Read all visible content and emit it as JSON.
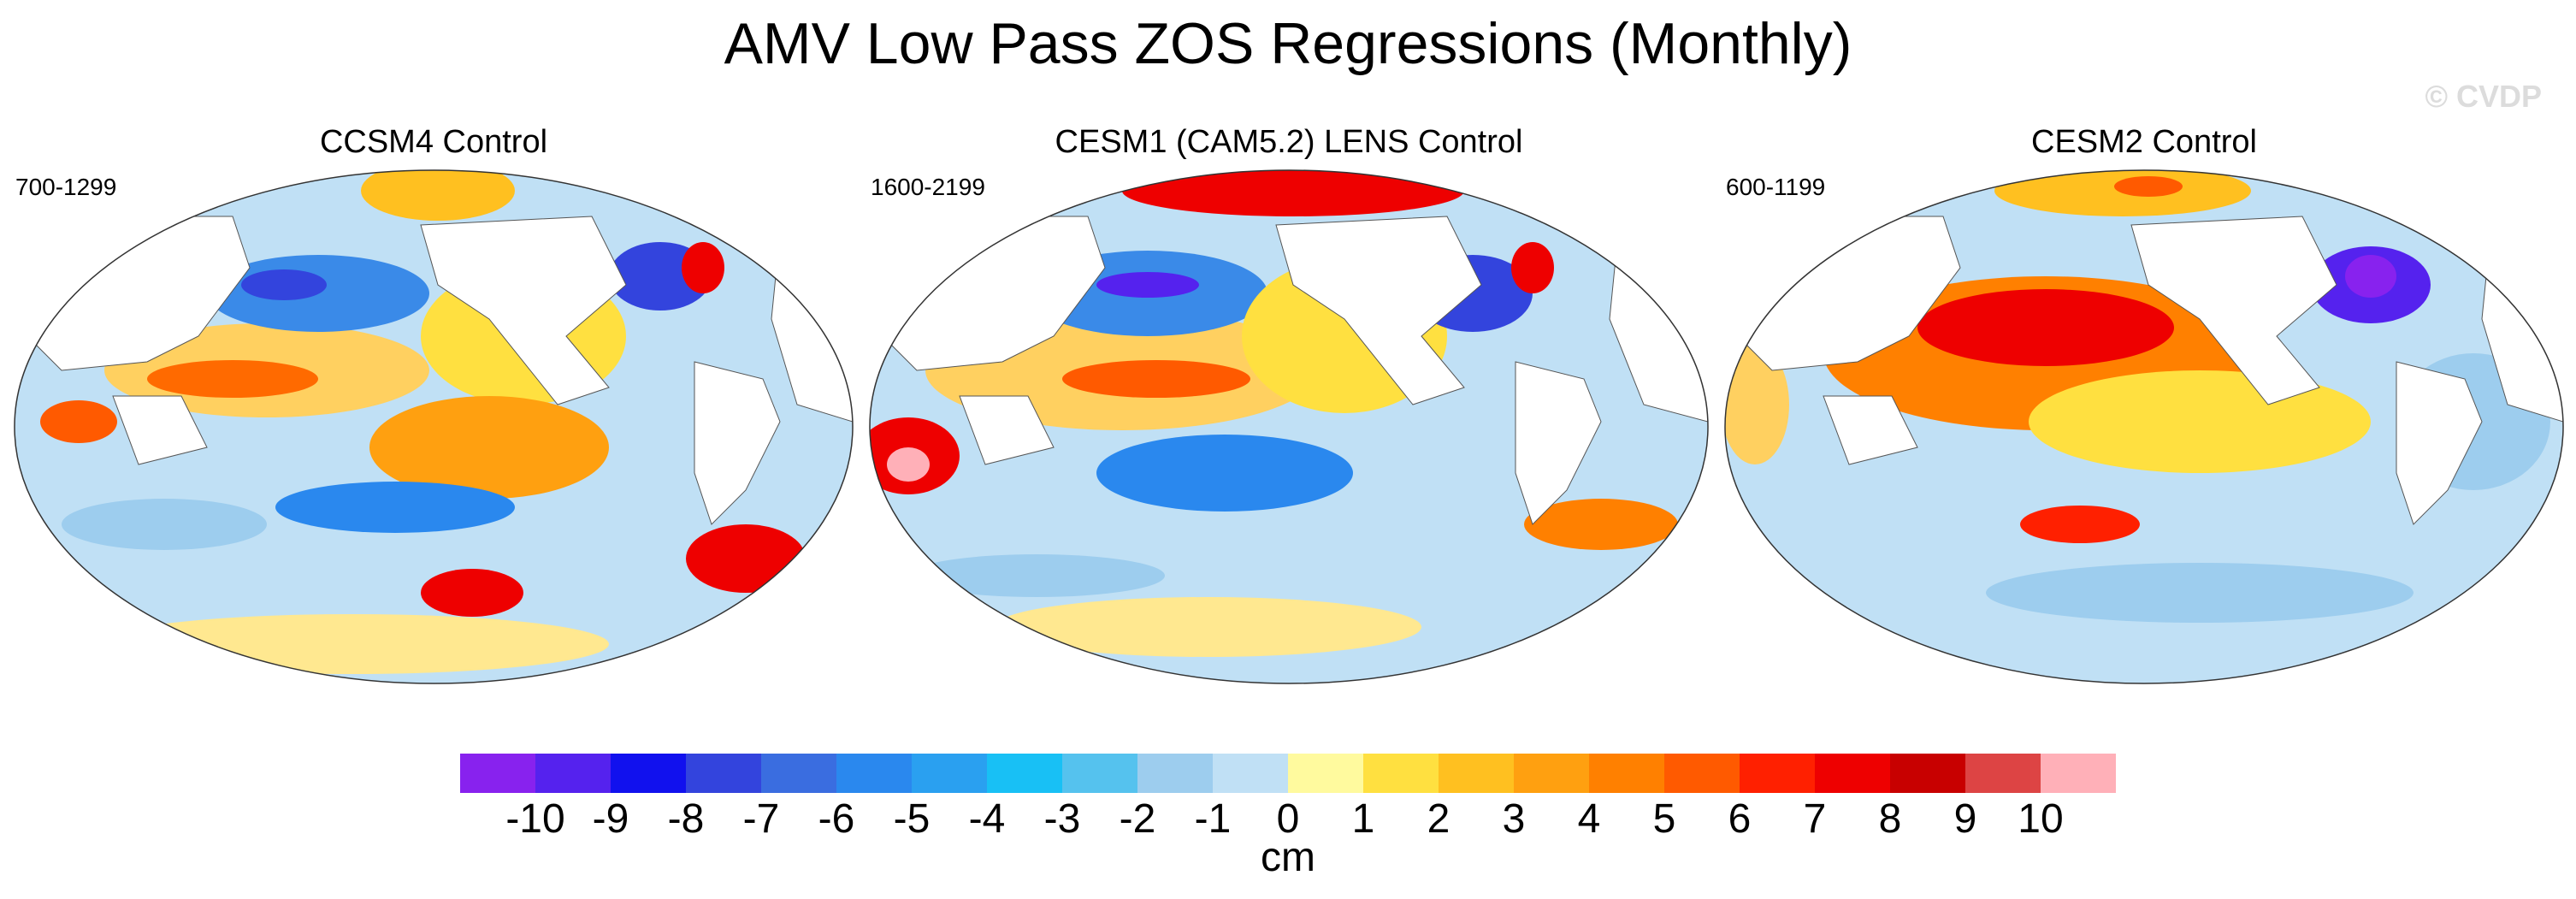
{
  "title": "AMV Low Pass ZOS Regressions (Monthly)",
  "credit": "© CVDP",
  "panels": [
    {
      "title": "CCSM4 Control",
      "years": "700-1299"
    },
    {
      "title": "CESM1 (CAM5.2) LENS Control",
      "years": "1600-2199"
    },
    {
      "title": "CESM2 Control",
      "years": "600-1199"
    }
  ],
  "colorbar": {
    "units": "cm",
    "colors": [
      "#8822ee",
      "#5522ee",
      "#1111ee",
      "#3344dd",
      "#3a6de0",
      "#2a88ee",
      "#2aa0f0",
      "#18c0f5",
      "#55c2ee",
      "#9dcdee",
      "#c0e0f5",
      "#fffa9e",
      "#ffe040",
      "#ffc020",
      "#ffa010",
      "#ff8000",
      "#ff5a00",
      "#ff2000",
      "#ee0000",
      "#c80000",
      "#dd4444",
      "#ffb0b8"
    ],
    "ticks": [
      "-10",
      "-9",
      "-8",
      "-7",
      "-6",
      "-5",
      "-4",
      "-3",
      "-2",
      "-1",
      "0",
      "1",
      "2",
      "3",
      "4",
      "5",
      "6",
      "7",
      "8",
      "9",
      "10"
    ]
  }
}
